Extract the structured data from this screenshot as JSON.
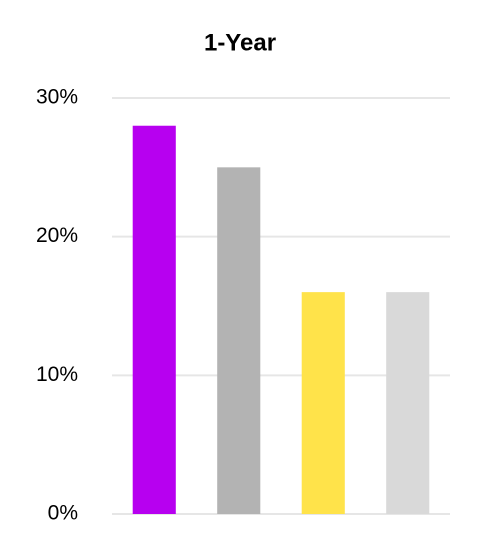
{
  "chart_data": {
    "type": "bar",
    "title": "1-Year",
    "categories": [
      null,
      null,
      null,
      null
    ],
    "values": [
      28,
      25,
      16,
      16
    ],
    "colors": [
      "#b700f0",
      "#b3b3b3",
      "#ffe34a",
      "#d9d9d9"
    ],
    "ylim": [
      0,
      30
    ],
    "yticks": [
      {
        "value": 0,
        "label": "0%"
      },
      {
        "value": 10,
        "label": "10%"
      },
      {
        "value": 20,
        "label": "20%"
      },
      {
        "value": 30,
        "label": "30%"
      }
    ],
    "grid": true
  }
}
